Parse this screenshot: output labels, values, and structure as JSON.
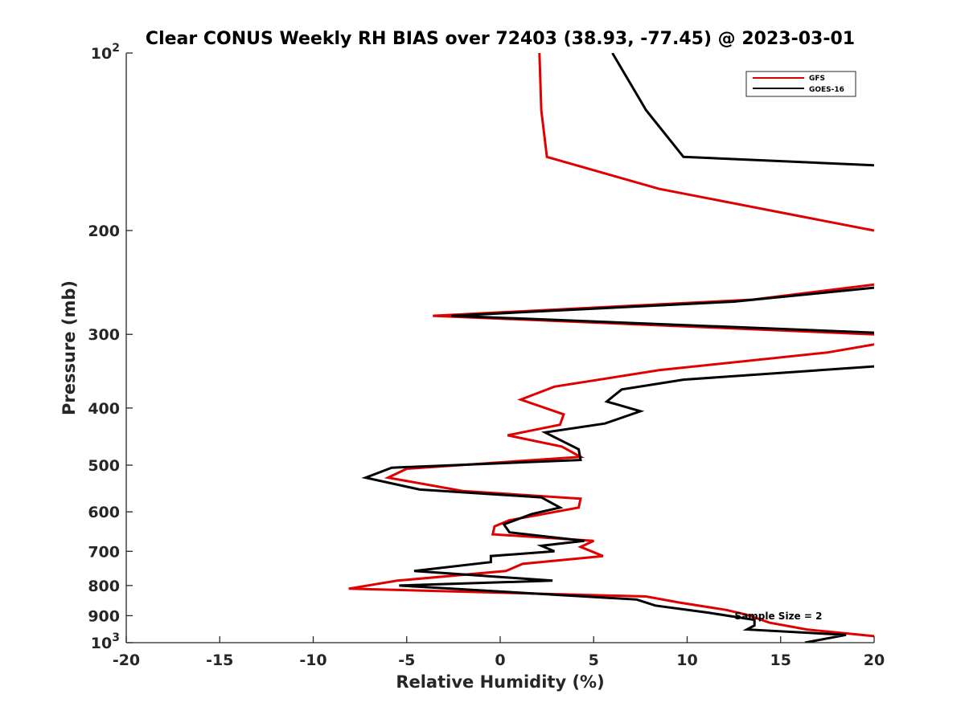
{
  "chart_data": {
    "type": "line",
    "title": "Clear CONUS Weekly RH BIAS over 72403 (38.93, -77.45) @ 2023-03-01",
    "xlabel": "Relative Humidity (%)",
    "ylabel": "Pressure (mb)",
    "xlim": [
      -20,
      20
    ],
    "ylim": [
      1000,
      100
    ],
    "y_scale": "log",
    "grid": false,
    "legend_position": "top-right",
    "x_ticks": [
      -20,
      -15,
      -10,
      -5,
      0,
      5,
      10,
      15,
      20
    ],
    "x_tick_labels": [
      "-20",
      "-15",
      "-10",
      "-5",
      "0",
      "5",
      "10",
      "15",
      "20"
    ],
    "y_ticks": [
      100,
      200,
      300,
      400,
      500,
      600,
      700,
      800,
      900,
      1000
    ],
    "y_tick_labels": [
      {
        "base": "10",
        "exp": "2"
      },
      {
        "base": "200",
        "exp": ""
      },
      {
        "base": "300",
        "exp": ""
      },
      {
        "base": "400",
        "exp": ""
      },
      {
        "base": "500",
        "exp": ""
      },
      {
        "base": "600",
        "exp": ""
      },
      {
        "base": "700",
        "exp": ""
      },
      {
        "base": "800",
        "exp": ""
      },
      {
        "base": "900",
        "exp": ""
      },
      {
        "base": "10",
        "exp": "3"
      }
    ],
    "annotation": "Sample Size = 2",
    "series": [
      {
        "name": "GFS",
        "color": "#e00000",
        "points": [
          [
            2.1,
            100
          ],
          [
            2.2,
            125
          ],
          [
            2.5,
            150
          ],
          [
            8.5,
            170
          ],
          [
            20,
            200
          ],
          [
            null,
            null
          ],
          [
            20,
            247
          ],
          [
            13.5,
            262
          ],
          [
            -3.6,
            279
          ],
          [
            20,
            300
          ],
          [
            null,
            null
          ],
          [
            20,
            312
          ],
          [
            17.5,
            322
          ],
          [
            8.5,
            345
          ],
          [
            2.9,
            368
          ],
          [
            1.1,
            387
          ],
          [
            3.4,
            410
          ],
          [
            3.2,
            427
          ],
          [
            0.4,
            445
          ],
          [
            3.3,
            465
          ],
          [
            4.3,
            484
          ],
          [
            -5.0,
            507
          ],
          [
            -6.0,
            525
          ],
          [
            -2.0,
            553
          ],
          [
            4.3,
            570
          ],
          [
            4.2,
            590
          ],
          [
            0.5,
            620
          ],
          [
            -0.3,
            635
          ],
          [
            -0.4,
            655
          ],
          [
            5.0,
            672
          ],
          [
            4.3,
            688
          ],
          [
            5.5,
            713
          ],
          [
            1.2,
            735
          ],
          [
            0.3,
            756
          ],
          [
            -5.5,
            785
          ],
          [
            -8.1,
            810
          ],
          [
            7.8,
            835
          ],
          [
            9.6,
            855
          ],
          [
            12.1,
            880
          ],
          [
            13.2,
            897
          ],
          [
            14.4,
            925
          ],
          [
            16.4,
            950
          ],
          [
            20,
            975
          ]
        ]
      },
      {
        "name": "GOES-16",
        "color": "#000000",
        "points": [
          [
            6.0,
            100
          ],
          [
            7.8,
            125
          ],
          [
            9.8,
            150
          ],
          [
            20,
            155
          ],
          [
            null,
            null
          ],
          [
            20,
            250
          ],
          [
            12.5,
            264
          ],
          [
            -2.6,
            279
          ],
          [
            20,
            298
          ],
          [
            null,
            null
          ],
          [
            20,
            340
          ],
          [
            9.8,
            358
          ],
          [
            6.5,
            372
          ],
          [
            5.7,
            390
          ],
          [
            7.5,
            405
          ],
          [
            5.6,
            425
          ],
          [
            2.4,
            440
          ],
          [
            4.2,
            470
          ],
          [
            4.3,
            490
          ],
          [
            -5.8,
            505
          ],
          [
            -7.2,
            525
          ],
          [
            -4.3,
            550
          ],
          [
            2.2,
            567
          ],
          [
            3.2,
            590
          ],
          [
            1.7,
            605
          ],
          [
            0.2,
            630
          ],
          [
            0.5,
            650
          ],
          [
            4.5,
            672
          ],
          [
            2.2,
            685
          ],
          [
            2.9,
            700
          ],
          [
            -0.5,
            713
          ],
          [
            -0.5,
            730
          ],
          [
            -4.6,
            756
          ],
          [
            2.8,
            785
          ],
          [
            -5.4,
            800
          ],
          [
            7.3,
            845
          ],
          [
            8.3,
            865
          ],
          [
            11.2,
            890
          ],
          [
            13.6,
            915
          ],
          [
            13.6,
            935
          ],
          [
            13.2,
            950
          ],
          [
            18.5,
            970
          ],
          [
            16.3,
            1000
          ]
        ]
      }
    ]
  }
}
